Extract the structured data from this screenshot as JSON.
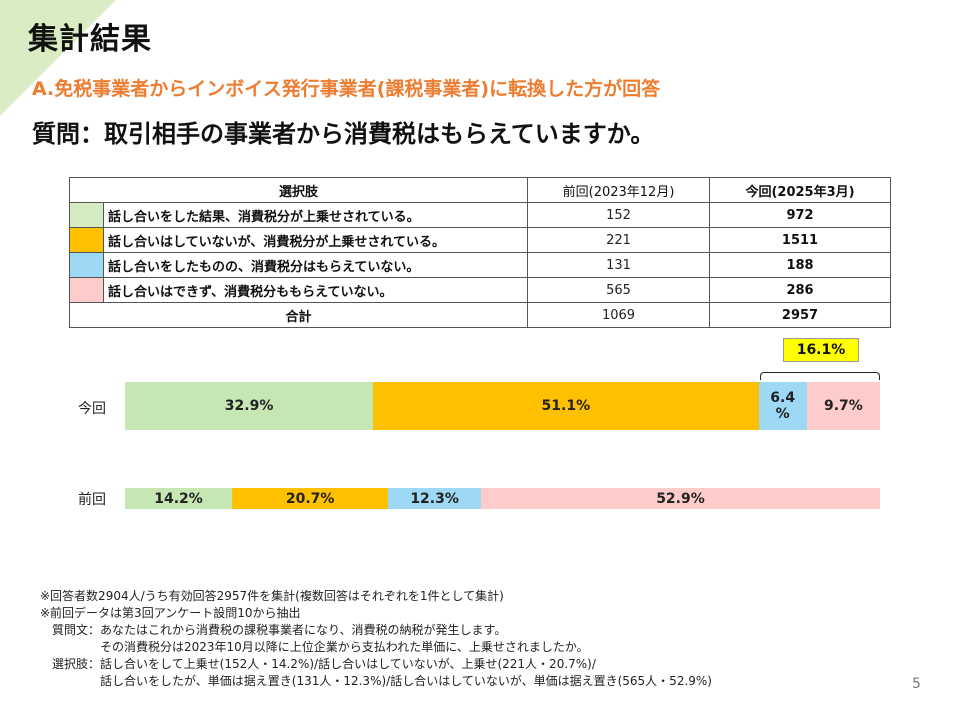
{
  "header": {
    "title": "集計結果",
    "subtitle": "A.免税事業者からインボイス発行事業者(課税事業者)に転換した方が回答",
    "question": "質問：取引相手の事業者から消費税はもらえていますか。"
  },
  "table": {
    "headers": {
      "choice": "選択肢",
      "prev": "前回(2023年12月)",
      "cur": "今回(2025年3月)"
    },
    "rows": [
      {
        "color": "#d5ecc3",
        "label": "話し合いをした結果、消費税分が上乗せされている。",
        "prev": "152",
        "cur": "972"
      },
      {
        "color": "#ffc000",
        "label": "話し合いはしていないが、消費税分が上乗せされている。",
        "prev": "221",
        "cur": "1511"
      },
      {
        "color": "#9dd8f5",
        "label": "話し合いをしたものの、消費税分はもらえていない。",
        "prev": "131",
        "cur": "188"
      },
      {
        "color": "#ffcccc",
        "label": "話し合いはできず、消費税分ももらえていない。",
        "prev": "565",
        "cur": "286"
      }
    ],
    "total": {
      "label": "合計",
      "prev": "1069",
      "cur": "2957"
    }
  },
  "chart_data": {
    "type": "bar",
    "orientation": "horizontal-stacked-100",
    "categories": [
      "今回",
      "前回"
    ],
    "colors": [
      "#c6e6b4",
      "#ffc000",
      "#9dd8f5",
      "#ffcccc"
    ],
    "series": [
      {
        "values": [
          32.9,
          14.2
        ],
        "labels": [
          "32.9%",
          "14.2%"
        ]
      },
      {
        "values": [
          51.1,
          20.7
        ],
        "labels": [
          "51.1%",
          "20.7%"
        ]
      },
      {
        "values": [
          6.4,
          12.3
        ],
        "labels": [
          "6.4\n%",
          "12.3%"
        ]
      },
      {
        "values": [
          9.7,
          52.9
        ],
        "labels": [
          "9.7%",
          "52.9%"
        ]
      }
    ],
    "annotation": "16.1%"
  },
  "notes": [
    "※回答者数2904人/うち有効回答2957件を集計(複数回答はそれぞれを1件として集計)",
    "※前回データは第3回アンケート設問10から抽出",
    "　質問文：あなたはこれから消費税の課税事業者になり、消費税の納税が発生します。",
    "　　　　　その消費税分は2023年10月以降に上位企業から支払われた単価に、上乗せされましたか。",
    "　選択肢：話し合いをして上乗せ(152人・14.2%)/話し合いはしていないが、上乗せ(221人・20.7%)/",
    "　　　　　話し合いをしたが、単価は据え置き(131人・12.3%)/話し合いはしていないが、単価は据え置き(565人・52.9%)"
  ],
  "page_number": "5"
}
